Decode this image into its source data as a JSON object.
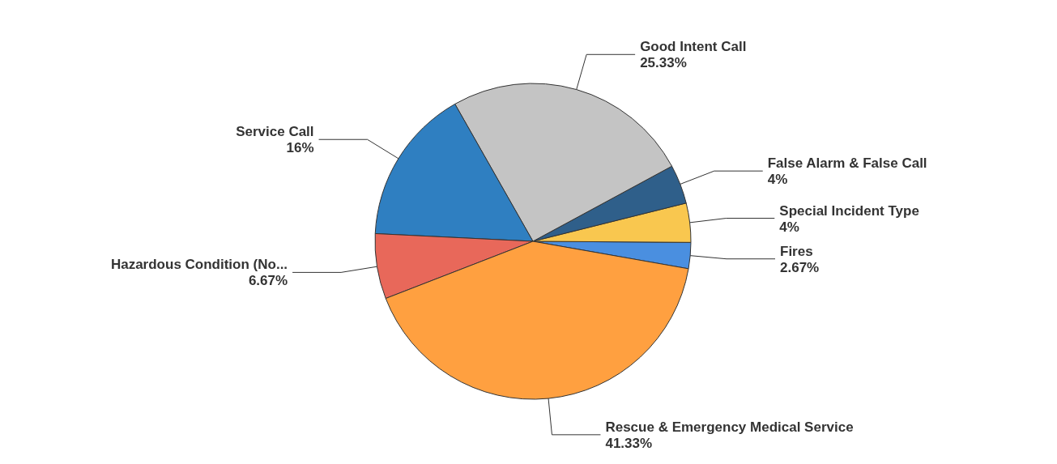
{
  "chart_data": {
    "type": "pie",
    "categories": [
      "Fires",
      "Special Incident Type",
      "False Alarm & False Call",
      "Good Intent Call",
      "Service Call",
      "Hazardous Condition (No...",
      "Rescue & Emergency Medical Service"
    ],
    "values": [
      2.67,
      4,
      4,
      25.33,
      16,
      6.67,
      41.33
    ],
    "value_labels": [
      "2.67%",
      "4%",
      "4%",
      "25.33%",
      "16%",
      "6.67%",
      "41.33%"
    ],
    "colors": [
      "#4a8fe0",
      "#f9c74f",
      "#2f5f8a",
      "#c4c4c4",
      "#2f7fc1",
      "#e8685a",
      "#ffa040"
    ],
    "legend": false
  }
}
